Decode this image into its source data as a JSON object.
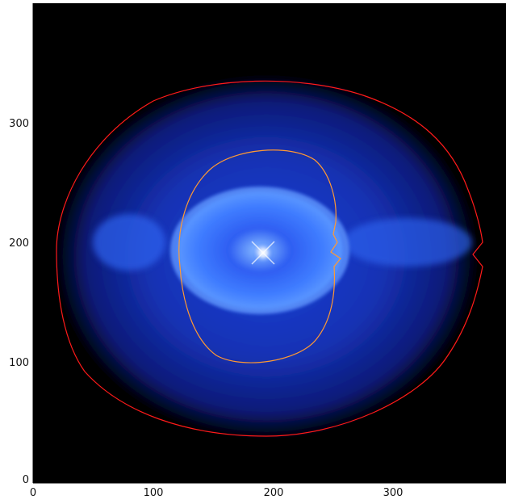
{
  "image": {
    "subject": "nebula",
    "background_color": "#000000",
    "palette": [
      "#0a1a7a",
      "#1f3fd8",
      "#3f7cff",
      "#7fb3ff",
      "#ffffff"
    ]
  },
  "axes": {
    "x_ticks": [
      "0",
      "100",
      "200",
      "300"
    ],
    "y_ticks": [
      "0",
      "100",
      "200",
      "300"
    ],
    "x_range": [
      0,
      395
    ],
    "y_range": [
      0,
      400
    ]
  },
  "contours": [
    {
      "color": "#ff1a1a"
    },
    {
      "color": "#ff9933"
    }
  ]
}
